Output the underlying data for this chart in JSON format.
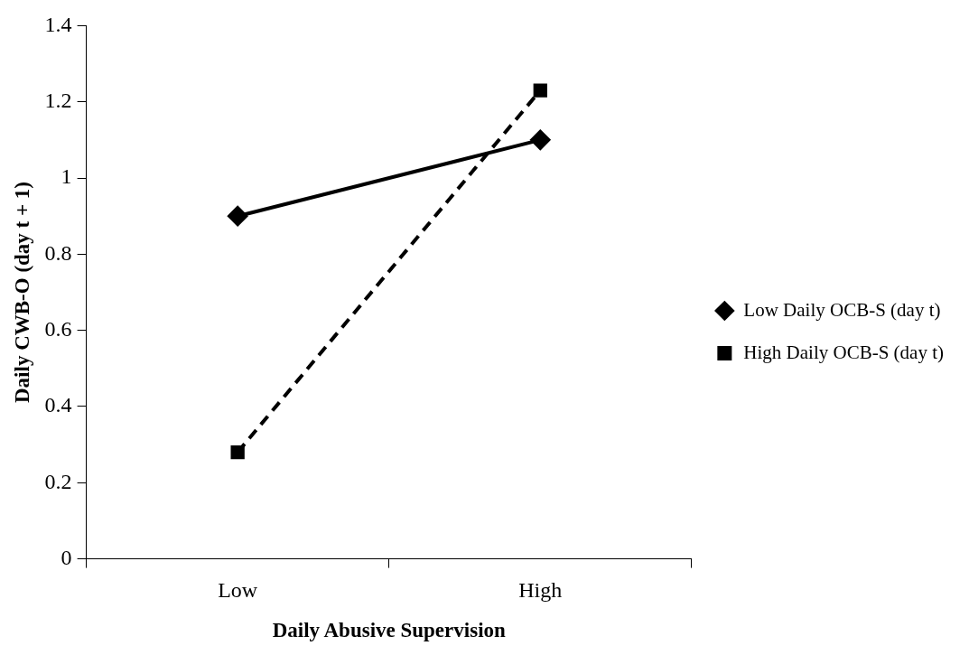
{
  "chart_data": {
    "type": "line",
    "xlabel": "Daily Abusive Supervision",
    "ylabel": "Daily CWB-O (day t + 1)",
    "categories": [
      "Low",
      "High"
    ],
    "series": [
      {
        "name": "Low Daily OCB-S (day t)",
        "color": "#000000",
        "values": [
          0.9,
          1.1
        ],
        "marker": "diamond",
        "line_style": "solid"
      },
      {
        "name": "High Daily OCB-S (day t)",
        "color": "#000000",
        "values": [
          0.28,
          1.23
        ],
        "marker": "square",
        "line_style": "dashed"
      }
    ],
    "ylim": [
      0,
      1.4
    ],
    "yticks": [
      0,
      0.2,
      0.4,
      0.6,
      0.8,
      1,
      1.2,
      1.4
    ],
    "grid": false,
    "legend": "right"
  }
}
